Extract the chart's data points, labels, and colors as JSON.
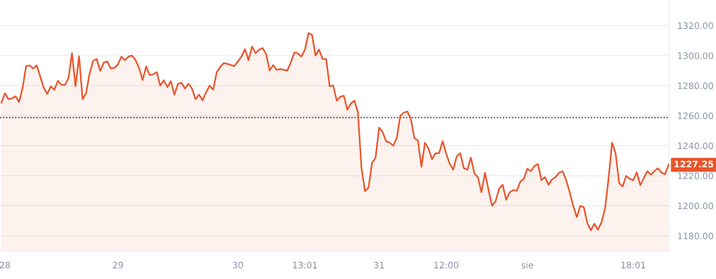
{
  "chart_data": {
    "type": "area",
    "categories": [
      null,
      "28",
      null,
      null,
      null,
      null,
      null,
      null,
      null,
      null,
      null,
      null,
      null,
      null,
      null,
      null,
      null,
      null,
      null,
      null,
      null,
      null,
      null,
      null,
      null,
      null,
      null,
      null,
      null,
      null,
      null,
      null,
      null,
      "29",
      null,
      null,
      null,
      null,
      null,
      null,
      null,
      null,
      null,
      null,
      null,
      null,
      null,
      null,
      null,
      null,
      null,
      null,
      null,
      null,
      null,
      null,
      null,
      null,
      null,
      null,
      null,
      null,
      null,
      null,
      null,
      null,
      null,
      "30",
      null,
      null,
      null,
      null,
      null,
      null,
      null,
      null,
      null,
      null,
      null,
      null,
      null,
      null,
      null,
      null,
      null,
      null,
      "13:01",
      null,
      null,
      null,
      null,
      null,
      null,
      null,
      null,
      null,
      null,
      null,
      null,
      null,
      null,
      null,
      null,
      null,
      null,
      null,
      null,
      "31",
      null,
      null,
      null,
      null,
      null,
      null,
      null,
      null,
      null,
      null,
      null,
      null,
      null,
      null,
      null,
      null,
      null,
      null,
      "12:00",
      null,
      null,
      null,
      null,
      null,
      null,
      null,
      null,
      null,
      null,
      null,
      null,
      null,
      null,
      null,
      null,
      null,
      null,
      null,
      null,
      null,
      null,
      "sie",
      null,
      null,
      null,
      null,
      null,
      null,
      null,
      null,
      null,
      null,
      null,
      null,
      null,
      null,
      null,
      null,
      null,
      null,
      null,
      null,
      null,
      null,
      null,
      null,
      null,
      null,
      null,
      null,
      null,
      "18:01",
      null,
      null,
      null,
      null,
      null,
      null,
      null,
      null,
      null,
      null
    ],
    "series": [
      {
        "color": "#e8542a",
        "values": [
          1268.6,
          1274.9,
          1271,
          1271.5,
          1272.9,
          1269.1,
          1278.5,
          1293,
          1293.5,
          1291.4,
          1293.5,
          1286,
          1278.5,
          1274.5,
          1279.5,
          1277.2,
          1283.2,
          1280.5,
          1280.5,
          1285,
          1301.6,
          1279.6,
          1299.6,
          1271,
          1274.9,
          1288.3,
          1296.5,
          1297.7,
          1289.8,
          1295.3,
          1296,
          1291.4,
          1291.8,
          1294,
          1299.3,
          1296.9,
          1299.3,
          1300,
          1297,
          1291.7,
          1283.6,
          1292.7,
          1287,
          1287.5,
          1289,
          1280,
          1283.6,
          1279,
          1283,
          1274,
          1281,
          1282,
          1278,
          1281.2,
          1278,
          1271,
          1274,
          1270.2,
          1275.7,
          1280,
          1277.2,
          1289,
          1292.5,
          1295,
          1294.5,
          1293.7,
          1293,
          1296.1,
          1299.3,
          1304.3,
          1297,
          1306,
          1301.6,
          1304,
          1305,
          1301,
          1290,
          1293.7,
          1290.5,
          1291,
          1290.5,
          1290,
          1295.5,
          1302,
          1301.5,
          1299.3,
          1304,
          1315,
          1313.7,
          1300,
          1304,
          1297.7,
          1297.7,
          1279.6,
          1280,
          1270,
          1272.5,
          1273.3,
          1264,
          1268,
          1270,
          1262.3,
          1225.4,
          1209.7,
          1212,
          1228.5,
          1232,
          1252.1,
          1249,
          1243,
          1242,
          1240,
          1245,
          1260,
          1262,
          1262.8,
          1258,
          1245,
          1243.5,
          1226,
          1242,
          1238,
          1231,
          1235,
          1235,
          1243,
          1234.8,
          1228,
          1224,
          1233,
          1235,
          1225,
          1224,
          1232,
          1221.5,
          1219,
          1209,
          1222,
          1210.5,
          1200,
          1203,
          1211.3,
          1214,
          1204,
          1208.9,
          1210.5,
          1210,
          1216,
          1218,
          1224.6,
          1223,
          1226.5,
          1227.8,
          1217,
          1219.1,
          1214,
          1217.5,
          1219.1,
          1222,
          1223,
          1217,
          1209,
          1200,
          1192.4,
          1200,
          1199,
          1188.5,
          1183.7,
          1188,
          1184,
          1189,
          1198,
          1218,
          1242,
          1235,
          1215.2,
          1212.9,
          1219.9,
          1218,
          1217,
          1222.3,
          1213.7,
          1218.4,
          1223,
          1220.7,
          1223.1,
          1225,
          1222,
          1221,
          1227.25
        ],
        "value_labels": [
          null,
          null,
          null,
          null,
          null,
          null,
          null,
          null,
          null,
          null,
          null,
          null,
          null,
          null,
          null,
          null,
          null,
          null,
          null,
          null,
          null,
          null,
          null,
          null,
          null,
          null,
          null,
          null,
          null,
          null,
          null,
          null,
          null,
          null,
          null,
          null,
          null,
          null,
          null,
          null,
          null,
          null,
          null,
          null,
          null,
          null,
          null,
          null,
          null,
          null,
          null,
          null,
          null,
          null,
          null,
          null,
          null,
          null,
          null,
          null,
          null,
          null,
          null,
          null,
          null,
          null,
          null,
          null,
          null,
          null,
          null,
          null,
          null,
          null,
          null,
          null,
          null,
          null,
          null,
          null,
          null,
          null,
          null,
          null,
          null,
          null,
          null,
          null,
          null,
          null,
          null,
          null,
          null,
          null,
          null,
          null,
          null,
          null,
          null,
          null,
          null,
          null,
          null,
          null,
          null,
          null,
          null,
          null,
          null,
          null,
          null,
          null,
          null,
          null,
          null,
          null,
          null,
          null,
          null,
          null,
          null,
          null,
          null,
          null,
          null,
          null,
          null,
          null,
          null,
          null,
          null,
          null,
          null,
          null,
          null,
          null,
          null,
          null,
          null,
          null,
          null,
          null,
          null,
          null,
          null,
          null,
          null,
          null,
          null,
          null,
          null,
          null,
          null,
          null,
          null,
          null,
          null,
          null,
          null,
          null,
          null,
          null,
          null,
          null,
          null,
          null,
          null,
          null,
          null,
          null,
          null,
          null,
          null,
          null,
          null,
          null,
          null,
          null,
          null,
          null,
          null,
          null,
          null,
          null,
          null,
          null,
          null,
          null,
          null,
          "1227.25"
        ]
      }
    ],
    "ylim": [
      1170,
      1337
    ],
    "yticks": [
      {
        "value": 1180,
        "label": "1180.00"
      },
      {
        "value": 1200,
        "label": "1200.00"
      },
      {
        "value": 1220,
        "label": "1220.00"
      },
      {
        "value": 1240,
        "label": "1240.00"
      },
      {
        "value": 1260,
        "label": "1260.00"
      },
      {
        "value": 1280,
        "label": "1280.00"
      },
      {
        "value": 1300,
        "label": "1300.00"
      },
      {
        "value": 1320,
        "label": "1320.00"
      }
    ],
    "grid": "y",
    "line_style": "solid",
    "ref_lines": [
      {
        "axis": "y",
        "value": 1258.7,
        "color": "#1c2541",
        "line_style": "dotted"
      }
    ]
  }
}
